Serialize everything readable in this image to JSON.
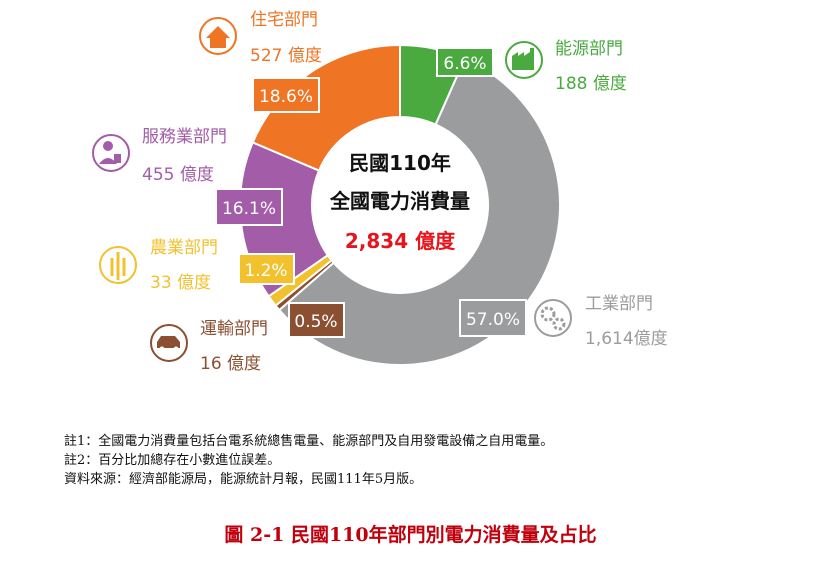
{
  "colors": {
    "energy": "#4aaa3f",
    "industry": "#9b9c9d",
    "transport": "#8b4f32",
    "agriculture": "#f2c12e",
    "service": "#a35ca8",
    "residential": "#ef7423",
    "center_total": "#e8141c"
  },
  "chart_data": {
    "type": "pie",
    "center": {
      "line1": "民國110年",
      "line2": "全國電力消費量",
      "total": "2,834 億度"
    },
    "slices": [
      {
        "key": "energy",
        "name": "能源部門",
        "value": 188,
        "value_label": "188 億度",
        "percent": 6.6,
        "percent_label": "6.6%",
        "icon": "factory-icon"
      },
      {
        "key": "industry",
        "name": "工業部門",
        "value": 1614,
        "value_label": "1,614億度",
        "percent": 57.0,
        "percent_label": "57.0%",
        "icon": "gears-icon"
      },
      {
        "key": "transport",
        "name": "運輸部門",
        "value": 16,
        "value_label": "16 億度",
        "percent": 0.5,
        "percent_label": "0.5%",
        "icon": "car-icon"
      },
      {
        "key": "agriculture",
        "name": "農業部門",
        "value": 33,
        "value_label": "33 億度",
        "percent": 1.2,
        "percent_label": "1.2%",
        "icon": "wheat-icon"
      },
      {
        "key": "service",
        "name": "服務業部門",
        "value": 455,
        "value_label": "455 億度",
        "percent": 16.1,
        "percent_label": "16.1%",
        "icon": "clerk-icon"
      },
      {
        "key": "residential",
        "name": "住宅部門",
        "value": 527,
        "value_label": "527 億度",
        "percent": 18.6,
        "percent_label": "18.6%",
        "icon": "house-icon"
      }
    ]
  },
  "notes": [
    "註1：全國電力消費量包括台電系統總售電量、能源部門及自用發電設備之自用電量。",
    "註2：百分比加總存在小數進位誤差。",
    "資料來源：經濟部能源局，能源統計月報，民國111年5月版。"
  ],
  "caption": "圖 2-1  民國110年部門別電力消費量及占比"
}
